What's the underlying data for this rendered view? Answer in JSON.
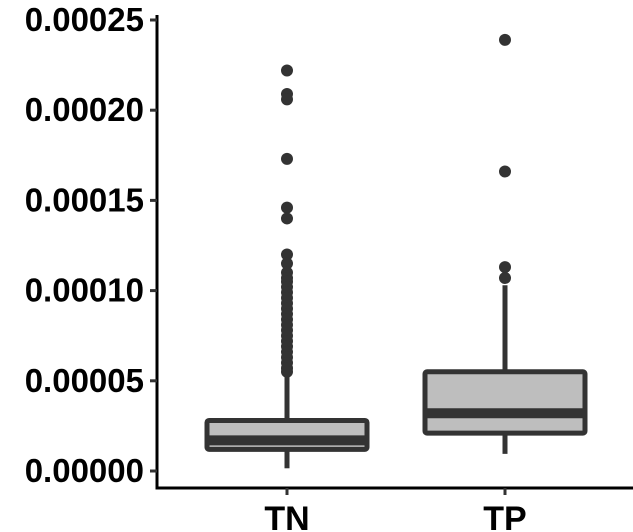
{
  "chart_data": {
    "type": "boxplot",
    "title": "",
    "xlabel": "",
    "ylabel": "",
    "ylim": [
      0,
      0.00025
    ],
    "yticks": [
      {
        "value": 0.0,
        "label": "0.00000"
      },
      {
        "value": 5e-05,
        "label": "0.00005"
      },
      {
        "value": 0.0001,
        "label": "0.00010"
      },
      {
        "value": 0.00015,
        "label": "0.00015"
      },
      {
        "value": 0.0002,
        "label": "0.00020"
      },
      {
        "value": 0.00025,
        "label": "0.00025"
      }
    ],
    "categories": [
      "TN",
      "TP"
    ],
    "boxes": [
      {
        "category": "TN",
        "whisker_low": 1.5e-06,
        "q1": 1.2e-05,
        "median": 1.7e-05,
        "q3": 2.8e-05,
        "whisker_high": 5.3e-05,
        "outliers": [
          0.000222,
          0.000209,
          0.000206,
          0.000173,
          0.000146,
          0.00014,
          0.00012,
          0.000115,
          0.00011,
          0.000107,
          0.000105,
          0.000102,
          9.9e-05,
          9.6e-05,
          9.3e-05,
          9e-05,
          8.7e-05,
          8.4e-05,
          8.1e-05,
          7.8e-05,
          7.5e-05,
          7.2e-05,
          6.9e-05,
          6.6e-05,
          6.3e-05,
          6e-05,
          5.7e-05,
          5.5e-05
        ]
      },
      {
        "category": "TP",
        "whisker_low": 9.5e-06,
        "q1": 2.1e-05,
        "median": 3.2e-05,
        "q3": 5.5e-05,
        "whisker_high": 0.000103,
        "outliers": [
          0.000239,
          0.000166,
          0.000113,
          0.000107
        ]
      }
    ],
    "colors": {
      "box_fill": "#bebebe",
      "box_stroke": "#333333",
      "outlier": "#333333",
      "axis": "#000000"
    }
  }
}
